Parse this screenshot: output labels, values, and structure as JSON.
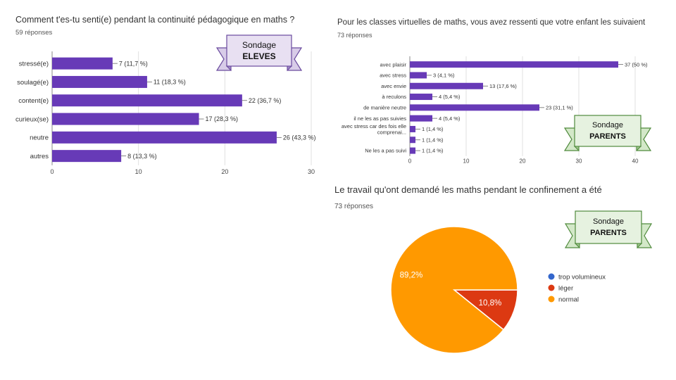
{
  "charts": {
    "students": {
      "title": "Comment t'es-tu senti(e) pendant la continuité pédagogique en maths ?",
      "responses": "59 réponses"
    },
    "parents_classes": {
      "title": "Pour les classes virtuelles de maths, vous avez ressenti que votre enfant les suivaient",
      "responses": "73 réponses"
    },
    "parents_work": {
      "title": "Le travail qu'ont demandé les maths pendant le confinement a été",
      "responses": "73 réponses"
    }
  },
  "banners": {
    "eleves": {
      "line1": "Sondage",
      "line2": "ELEVES",
      "fill": "#e8e0f2",
      "stroke": "#6a4b9e"
    },
    "parents1": {
      "line1": "Sondage",
      "line2": "PARENTS",
      "fill": "#e6f2e0",
      "stroke": "#4f8a3c"
    },
    "parents2": {
      "line1": "Sondage",
      "line2": "PARENTS",
      "fill": "#e6f2e0",
      "stroke": "#4f8a3c"
    }
  },
  "colors": {
    "bar": "#673ab7",
    "grid": "#e0e0e0",
    "axis": "#444444"
  },
  "chart_data": [
    {
      "type": "bar",
      "orientation": "horizontal",
      "title": "Comment t'es-tu senti(e) pendant la continuité pédagogique en maths ?",
      "categories": [
        "stressé(e)",
        "soulagé(e)",
        "content(e)",
        "curieux(se)",
        "neutre",
        "autres"
      ],
      "values": [
        7,
        11,
        22,
        17,
        26,
        8
      ],
      "labels": [
        "7 (11,7 %)",
        "11 (18,3 %)",
        "22 (36,7 %)",
        "17 (28,3 %)",
        "26 (43,3 %)",
        "8 (13,3 %)"
      ],
      "xlim": [
        0,
        30
      ],
      "ticks": [
        0,
        10,
        20,
        30
      ],
      "grid": true
    },
    {
      "type": "bar",
      "orientation": "horizontal",
      "title": "Pour les classes virtuelles de maths, vous avez ressenti que votre enfant les suivaient",
      "categories": [
        [
          "avec plaisir"
        ],
        [
          "avec stress"
        ],
        [
          "avec envie"
        ],
        [
          "à reculons"
        ],
        [
          "de manière neutre"
        ],
        [
          "il ne les as pas suivies"
        ],
        [
          "avec stress car des fois elle",
          "comprenai..."
        ],
        [
          ""
        ],
        [
          "Ne les a pas suivi"
        ]
      ],
      "values": [
        37,
        3,
        13,
        4,
        23,
        4,
        1,
        1,
        1
      ],
      "labels": [
        "37 (50 %)",
        "3 (4,1 %)",
        "13 (17,6 %)",
        "4 (5,4 %)",
        "23 (31,1 %)",
        "4 (5,4 %)",
        "1 (1,4 %)",
        "1 (1,4 %)",
        "1 (1,4 %)"
      ],
      "xlim": [
        0,
        40
      ],
      "ticks": [
        0,
        10,
        20,
        30,
        40
      ],
      "grid": true
    },
    {
      "type": "pie",
      "title": "Le travail qu'ont demandé les maths pendant le confinement a été",
      "slices": [
        {
          "label": "trop volumineux",
          "value": 0,
          "color": "#3366cc"
        },
        {
          "label": "léger",
          "value": 10.8,
          "color": "#dc3912"
        },
        {
          "label": "normal",
          "value": 89.2,
          "color": "#ff9900"
        }
      ],
      "slice_labels": [
        "10,8%",
        "89,2%"
      ],
      "legend": "right"
    }
  ]
}
